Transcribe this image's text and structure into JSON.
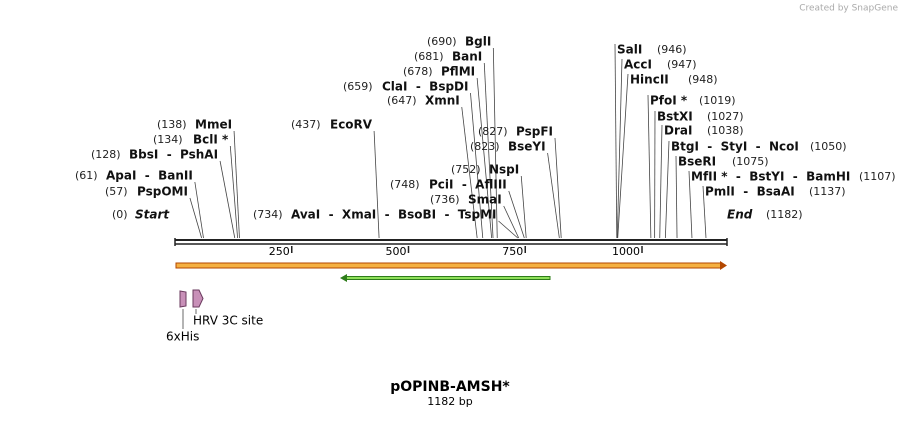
{
  "watermark": "Created by SnapGene",
  "map": {
    "title": "pOPINB-AMSH*",
    "subtitle": "1182 bp",
    "scale_ticks": [
      250,
      500,
      750,
      1000
    ],
    "sites": [
      {
        "position": "(690)",
        "label": "BglI"
      },
      {
        "position": "(681)",
        "label": "BanI"
      },
      {
        "position": "(678)",
        "label": "PflMI"
      },
      {
        "position": "(659)",
        "label": "ClaI  -  BspDI"
      },
      {
        "position": "(647)",
        "label": "XmnI"
      },
      {
        "position": "(437)",
        "label": "EcoRV"
      },
      {
        "position": "(138)",
        "label": "MmeI"
      },
      {
        "position": "(134)",
        "label": "BclI *"
      },
      {
        "position": "(128)",
        "label": "BbsI  -  PshAI"
      },
      {
        "position": "(61)",
        "label": "ApaI  -  BanII"
      },
      {
        "position": "(57)",
        "label": "PspOMI"
      },
      {
        "position": "(0)",
        "label": "Start"
      },
      {
        "position": "(734)",
        "label": "AvaI  -  XmaI  -  BsoBI  -  TspMI"
      },
      {
        "position": "(827)",
        "label": "PspFI"
      },
      {
        "position": "(823)",
        "label": "BseYI"
      },
      {
        "position": "(752)",
        "label": "NspI"
      },
      {
        "position": "(748)",
        "label": "PciI  -  AflIII"
      },
      {
        "position": "(736)",
        "label": "SmaI"
      },
      {
        "position": "(946)",
        "label": "SalI"
      },
      {
        "position": "(947)",
        "label": "AccI"
      },
      {
        "position": "(948)",
        "label": "HincII"
      },
      {
        "position": "(1019)",
        "label": "PfoI *"
      },
      {
        "position": "(1027)",
        "label": "BstXI"
      },
      {
        "position": "(1038)",
        "label": "DraI"
      },
      {
        "position": "(1050)",
        "label": "BtgI  -  StyI  -  NcoI"
      },
      {
        "position": "(1075)",
        "label": "BseRI"
      },
      {
        "position": "(1107)",
        "label": "MfII *  -  BstYI  -  BamHI"
      },
      {
        "position": "(1137)",
        "label": "PmlI  -  BsaAI"
      },
      {
        "position": "(1182)",
        "label": "End"
      }
    ],
    "features": [
      {
        "label": "6xHis"
      },
      {
        "label": "HRV 3C site"
      }
    ]
  }
}
